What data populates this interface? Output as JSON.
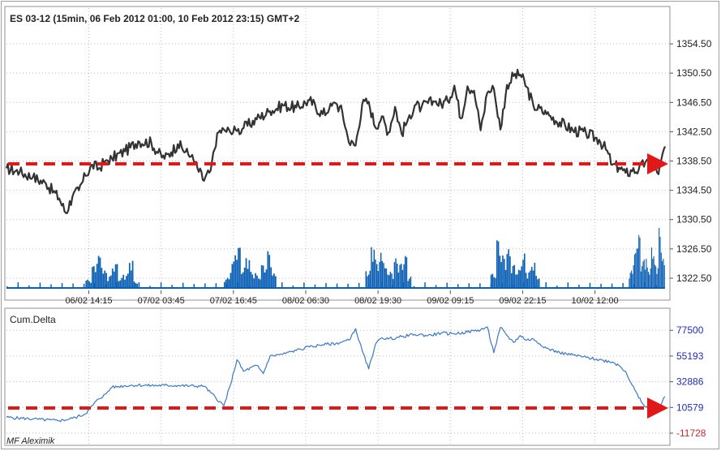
{
  "price_panel": {
    "title": "ES 03-12 (15min, 06 Feb 2012 01:00, 10 Feb 2012 23:15) GMT+2"
  },
  "delta_panel": {
    "title": "Cum.Delta"
  },
  "footer": {
    "watermark": "MF Aleximik"
  },
  "colors": {
    "price_line": "#333333",
    "volume_bar": "#0a5fb4",
    "delta_line": "#3a78c8",
    "delta_axis_label": "#1f2db4",
    "negative_label": "#c82828",
    "guide_arrow": "#e01818",
    "grid": "#bdbdbd"
  },
  "chart_data": [
    {
      "type": "line",
      "name": "price",
      "title": "ES 03-12 (15min, 06 Feb 2012 01:00, 10 Feb 2012 23:15) GMT+2",
      "x_tick_labels": [
        "06/02 14:15",
        "07/02 03:45",
        "07/02 16:45",
        "08/02 06:30",
        "08/02 19:30",
        "09/02 09:15",
        "09/02 22:15",
        "10/02 12:00"
      ],
      "y_tick_labels": [
        "1354.50",
        "1350.50",
        "1346.50",
        "1342.50",
        "1338.50",
        "1334.50",
        "1330.50",
        "1326.50",
        "1322.50"
      ],
      "ylim": [
        1321.5,
        1356.5
      ],
      "series": [
        {
          "x": [
            0,
            0.02,
            0.04,
            0.06,
            0.08,
            0.09,
            0.1,
            0.11,
            0.12,
            0.13,
            0.14,
            0.15,
            0.16,
            0.18,
            0.2,
            0.22,
            0.23,
            0.24,
            0.25,
            0.26,
            0.28,
            0.29,
            0.3,
            0.31,
            0.32,
            0.33,
            0.34,
            0.35,
            0.36,
            0.38,
            0.4,
            0.42,
            0.44,
            0.46,
            0.48,
            0.49,
            0.5,
            0.51,
            0.52,
            0.53,
            0.54,
            0.55,
            0.56,
            0.57,
            0.58,
            0.59,
            0.6,
            0.61,
            0.62,
            0.63,
            0.64,
            0.65,
            0.66,
            0.67,
            0.68,
            0.69,
            0.7,
            0.71,
            0.72,
            0.73,
            0.74,
            0.75,
            0.76,
            0.77,
            0.78,
            0.79,
            0.8,
            0.82,
            0.84,
            0.86,
            0.88,
            0.9,
            0.91,
            0.92,
            0.93,
            0.94,
            0.95,
            0.96,
            0.97,
            0.98,
            0.99,
            1.0
          ],
          "values": [
            1337.5,
            1337.0,
            1336.3,
            1335.4,
            1333.4,
            1331.4,
            1333.6,
            1334.5,
            1336.5,
            1338.0,
            1337.5,
            1338.5,
            1338.9,
            1339.8,
            1341.2,
            1341.0,
            1339.6,
            1338.8,
            1339.7,
            1340.8,
            1339.1,
            1337.5,
            1335.8,
            1337.2,
            1342.3,
            1342.8,
            1342.4,
            1342.6,
            1343.0,
            1344.2,
            1345.3,
            1346.1,
            1345.8,
            1346.8,
            1344.9,
            1345.6,
            1346.4,
            1345.2,
            1341.0,
            1340.6,
            1346.2,
            1346.6,
            1343.1,
            1344.6,
            1342.4,
            1345.9,
            1342.2,
            1344.3,
            1346.1,
            1345.8,
            1346.4,
            1346.6,
            1346.3,
            1346.7,
            1348.8,
            1344.3,
            1348.7,
            1348.1,
            1342.7,
            1347.8,
            1348.4,
            1342.8,
            1348.9,
            1350.1,
            1350.3,
            1348.6,
            1346.1,
            1344.9,
            1343.8,
            1342.7,
            1342.3,
            1341.4,
            1340.1,
            1338.0,
            1337.6,
            1336.9,
            1337.1,
            1337.3,
            1338.3,
            1337.7,
            1336.7,
            1340.5
          ]
        }
      ]
    },
    {
      "type": "bar",
      "name": "volume",
      "description_of_shape": "intraday volume histogram with clusters during US sessions",
      "sessions": [
        {
          "x_range": [
            0.12,
            0.2
          ],
          "levels": [
            0.15,
            0.38,
            0.55,
            0.3,
            0.22,
            0.42,
            0.18,
            0.25,
            0.5,
            0.12
          ]
        },
        {
          "x_range": [
            0.33,
            0.41
          ],
          "levels": [
            0.18,
            0.45,
            0.7,
            0.35,
            0.55,
            0.28,
            0.22,
            0.4,
            0.62,
            0.25
          ]
        },
        {
          "x_range": [
            0.545,
            0.615
          ],
          "levels": [
            0.3,
            0.75,
            0.48,
            0.6,
            0.35,
            0.28,
            0.5,
            0.42,
            0.55,
            0.2
          ]
        },
        {
          "x_range": [
            0.735,
            0.81
          ],
          "levels": [
            0.25,
            0.82,
            0.55,
            0.65,
            0.4,
            0.32,
            0.58,
            0.3,
            0.45,
            0.22
          ]
        },
        {
          "x_range": [
            0.945,
            1.0
          ],
          "levels": [
            0.3,
            0.6,
            0.9,
            0.45,
            0.55,
            0.35,
            0.7,
            0.4,
            1.0,
            0.5
          ]
        }
      ]
    },
    {
      "type": "line",
      "name": "Cum.Delta",
      "title": "Cum.Delta",
      "y_tick_labels": [
        "77500",
        "55193",
        "32886",
        "10579",
        "-11728"
      ],
      "ylim": [
        -11728,
        84000
      ],
      "series": [
        {
          "x": [
            0,
            0.04,
            0.08,
            0.1,
            0.12,
            0.13,
            0.14,
            0.15,
            0.16,
            0.18,
            0.2,
            0.22,
            0.24,
            0.26,
            0.3,
            0.33,
            0.34,
            0.35,
            0.36,
            0.38,
            0.39,
            0.4,
            0.42,
            0.44,
            0.46,
            0.48,
            0.5,
            0.52,
            0.53,
            0.54,
            0.55,
            0.56,
            0.57,
            0.58,
            0.6,
            0.62,
            0.64,
            0.66,
            0.68,
            0.7,
            0.72,
            0.73,
            0.74,
            0.75,
            0.76,
            0.77,
            0.78,
            0.79,
            0.8,
            0.82,
            0.84,
            0.86,
            0.88,
            0.9,
            0.92,
            0.93,
            0.94,
            0.95,
            0.96,
            0.97,
            0.98,
            0.99,
            1.0
          ],
          "values": [
            2000,
            500,
            -1000,
            1000,
            5000,
            12000,
            18000,
            22000,
            28000,
            29500,
            30000,
            29500,
            29800,
            29500,
            29000,
            12000,
            30000,
            52000,
            42000,
            47000,
            40000,
            55000,
            57000,
            60000,
            63000,
            65000,
            66000,
            69000,
            79000,
            60000,
            44000,
            65000,
            71000,
            70000,
            72000,
            74000,
            73000,
            75000,
            74500,
            76000,
            78000,
            80500,
            58000,
            80000,
            73000,
            67000,
            73000,
            69000,
            70000,
            62000,
            58000,
            56000,
            54000,
            52000,
            50000,
            47000,
            42000,
            30000,
            19000,
            11000,
            9000,
            10500,
            20000
          ]
        }
      ]
    }
  ]
}
